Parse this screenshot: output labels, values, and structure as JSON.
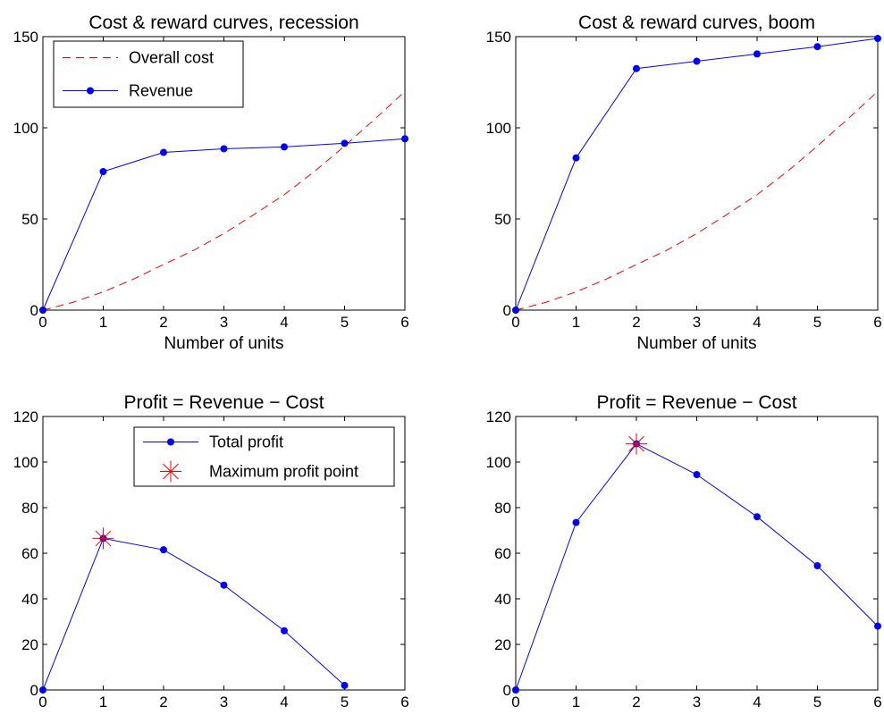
{
  "chart_data": [
    {
      "type": "line",
      "title": "Cost & reward curves, recession",
      "xlabel": "Number of units",
      "ylabel": "",
      "xlim": [
        0,
        6
      ],
      "ylim": [
        0,
        150
      ],
      "xticks": [
        0,
        1,
        2,
        3,
        4,
        5,
        6
      ],
      "yticks": [
        0,
        50,
        100,
        150
      ],
      "grid": false,
      "legend_position": "top-left",
      "series": [
        {
          "name": "Overall cost",
          "style": "dashed",
          "color": "#ff0000",
          "x": [
            0,
            0.5,
            1,
            1.5,
            2,
            2.5,
            3,
            3.5,
            4,
            4.5,
            5,
            5.5,
            6
          ],
          "values": [
            0,
            4.3,
            10,
            17,
            25,
            32.8,
            42,
            52.4,
            63.3,
            76,
            90,
            104.7,
            120
          ]
        },
        {
          "name": "Revenue",
          "style": "solid-dot",
          "color": "#0000ff",
          "x": [
            0,
            1,
            2,
            3,
            4,
            5,
            6
          ],
          "values": [
            0,
            76,
            86.5,
            88.5,
            89.5,
            91.5,
            94
          ]
        }
      ]
    },
    {
      "type": "line",
      "title": "Cost & reward curves, boom",
      "xlabel": "Number of units",
      "ylabel": "",
      "xlim": [
        0,
        6
      ],
      "ylim": [
        0,
        150
      ],
      "xticks": [
        0,
        1,
        2,
        3,
        4,
        5,
        6
      ],
      "yticks": [
        0,
        50,
        100,
        150
      ],
      "grid": false,
      "series": [
        {
          "style": "dashed",
          "color": "#ff0000",
          "x": [
            0,
            0.5,
            1,
            1.5,
            2,
            2.5,
            3,
            3.5,
            4,
            4.5,
            5,
            5.5,
            6
          ],
          "values": [
            0,
            4.3,
            10,
            17,
            25,
            32.8,
            42,
            52.4,
            63.3,
            76,
            90,
            104.7,
            120
          ]
        },
        {
          "style": "solid-dot",
          "color": "#0000ff",
          "x": [
            0,
            1,
            2,
            3,
            4,
            5,
            6
          ],
          "values": [
            0,
            83.5,
            132.5,
            136.5,
            140.5,
            144.5,
            149
          ]
        }
      ]
    },
    {
      "type": "line",
      "title": "Profit = Revenue − Cost",
      "xlabel": "",
      "ylabel": "",
      "xlim": [
        0,
        6
      ],
      "ylim": [
        0,
        120
      ],
      "xticks": [
        0,
        1,
        2,
        3,
        4,
        5,
        6
      ],
      "yticks": [
        0,
        20,
        40,
        60,
        80,
        100,
        120
      ],
      "grid": false,
      "legend_position": "top-right",
      "series": [
        {
          "name": "Total profit",
          "style": "solid-dot",
          "color": "#0000ff",
          "x": [
            0,
            1,
            2,
            3,
            4,
            5
          ],
          "values": [
            0,
            66.5,
            61.5,
            46,
            26,
            2
          ]
        },
        {
          "name": "Maximum profit point",
          "style": "star-marker",
          "color": "#ff0000",
          "x": [
            1
          ],
          "values": [
            66.5
          ]
        }
      ]
    },
    {
      "type": "line",
      "title": "Profit = Revenue − Cost",
      "xlabel": "",
      "ylabel": "",
      "xlim": [
        0,
        6
      ],
      "ylim": [
        0,
        120
      ],
      "xticks": [
        0,
        1,
        2,
        3,
        4,
        5,
        6
      ],
      "yticks": [
        0,
        20,
        40,
        60,
        80,
        100,
        120
      ],
      "grid": false,
      "series": [
        {
          "style": "solid-dot",
          "color": "#0000ff",
          "x": [
            0,
            1,
            2,
            3,
            4,
            5,
            6
          ],
          "values": [
            0,
            73.5,
            108,
            94.5,
            76,
            54.5,
            28
          ]
        },
        {
          "style": "star-marker",
          "color": "#ff0000",
          "x": [
            2
          ],
          "values": [
            108
          ]
        }
      ]
    }
  ]
}
